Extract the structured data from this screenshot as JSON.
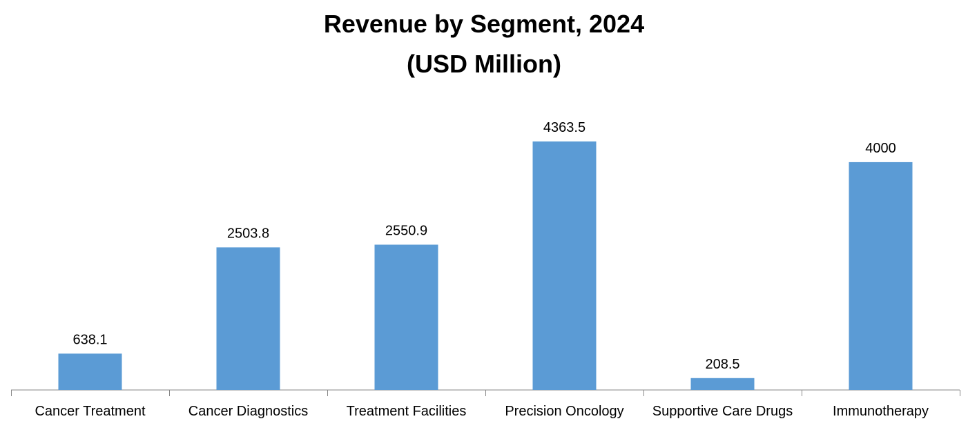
{
  "chart_data": {
    "type": "bar",
    "title": "Revenue by Segment, 2024",
    "subtitle": "(USD Million)",
    "categories": [
      "Cancer Treatment",
      "Cancer Diagnostics",
      "Treatment Facilities",
      "Precision Oncology",
      "Supportive Care Drugs",
      "Immunotherapy"
    ],
    "values": [
      638.1,
      2503.8,
      2550.9,
      4363.5,
      208.5,
      4000
    ],
    "value_labels": [
      "638.1",
      "2503.8",
      "2550.9",
      "4363.5",
      "208.5",
      "4000"
    ],
    "xlabel": "",
    "ylabel": "",
    "ylim": [
      0,
      5000
    ],
    "grid": false,
    "legend": "none",
    "colors": {
      "bar": "#5b9bd5",
      "axis": "#868686",
      "text": "#000000"
    }
  }
}
